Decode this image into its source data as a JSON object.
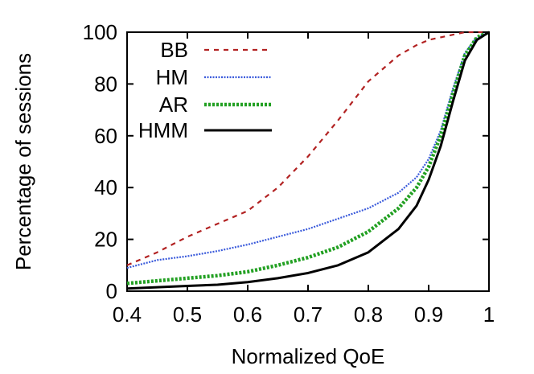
{
  "chart_data": {
    "type": "line",
    "xlabel": "Normalized QoE",
    "ylabel": "Percentage of sessions",
    "xlim": [
      0.4,
      1.0
    ],
    "ylim": [
      0,
      100
    ],
    "xticks": [
      "0.4",
      "0.5",
      "0.6",
      "0.7",
      "0.8",
      "0.9",
      "1"
    ],
    "yticks": [
      "0",
      "20",
      "40",
      "60",
      "80",
      "100"
    ],
    "grid": false,
    "legend_position": "top-left",
    "series": [
      {
        "name": "BB",
        "color": "#b22222",
        "style": "dashed",
        "x": [
          0.4,
          0.45,
          0.5,
          0.55,
          0.6,
          0.65,
          0.7,
          0.75,
          0.8,
          0.85,
          0.88,
          0.9,
          0.92,
          0.94,
          0.96,
          1.0
        ],
        "y": [
          10,
          15,
          21,
          26,
          31,
          40,
          52,
          66,
          81,
          91,
          95,
          97,
          98,
          99,
          100,
          100
        ]
      },
      {
        "name": "HM",
        "color": "#3b5bdb",
        "style": "dotted",
        "x": [
          0.4,
          0.45,
          0.5,
          0.55,
          0.6,
          0.65,
          0.7,
          0.75,
          0.8,
          0.85,
          0.88,
          0.9,
          0.92,
          0.94,
          0.96,
          0.98,
          1.0
        ],
        "y": [
          9,
          12,
          13.5,
          15.5,
          18,
          21,
          24,
          28,
          32,
          38,
          44,
          51,
          62,
          78,
          92,
          98,
          100
        ]
      },
      {
        "name": "AR",
        "color": "#22a022",
        "style": "dotted",
        "x": [
          0.4,
          0.45,
          0.5,
          0.55,
          0.6,
          0.65,
          0.7,
          0.75,
          0.8,
          0.85,
          0.88,
          0.9,
          0.92,
          0.94,
          0.96,
          0.98,
          1.0
        ],
        "y": [
          3,
          4,
          5,
          6,
          7.5,
          10,
          13,
          17,
          23,
          32,
          40,
          48,
          60,
          76,
          91,
          98,
          100
        ]
      },
      {
        "name": "HMM",
        "color": "#000000",
        "style": "solid",
        "x": [
          0.4,
          0.45,
          0.5,
          0.55,
          0.6,
          0.65,
          0.7,
          0.75,
          0.8,
          0.85,
          0.88,
          0.9,
          0.92,
          0.94,
          0.96,
          0.98,
          1.0
        ],
        "y": [
          1,
          1.5,
          2,
          2.5,
          3.5,
          5,
          7,
          10,
          15,
          24,
          33,
          43,
          56,
          73,
          89,
          97,
          100
        ]
      }
    ]
  }
}
